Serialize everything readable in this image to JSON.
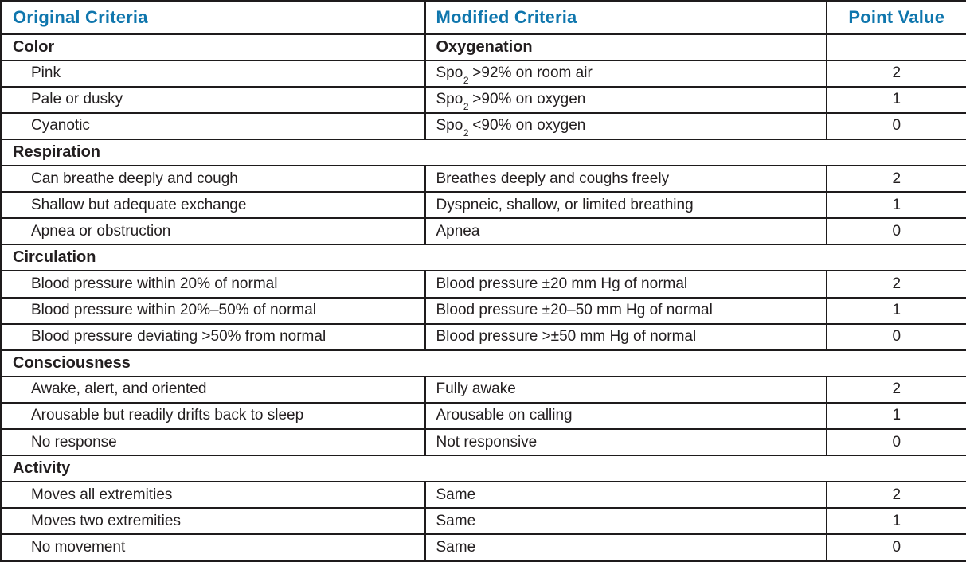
{
  "colors": {
    "accent": "#0f76ad",
    "ink": "#221e1f",
    "border": "#1e1b1c"
  },
  "header": {
    "original": "Original Criteria",
    "modified": "Modified Criteria",
    "points": "Point Value"
  },
  "sections": [
    {
      "original_label": "Color",
      "modified_label": "Oxygenation",
      "rows": [
        {
          "original": "Pink",
          "modified_pre": "Spo",
          "modified_sub": "2",
          "modified_post": " >92% on room air",
          "points": "2"
        },
        {
          "original": "Pale or dusky",
          "modified_pre": "Spo",
          "modified_sub": "2",
          "modified_post": " >90% on oxygen",
          "points": "1"
        },
        {
          "original": "Cyanotic",
          "modified_pre": "Spo",
          "modified_sub": "2",
          "modified_post": " <90% on oxygen",
          "points": "0"
        }
      ]
    },
    {
      "label": "Respiration",
      "rows": [
        {
          "original": "Can breathe deeply and cough",
          "modified_pre": "Breathes deeply and coughs freely",
          "points": "2"
        },
        {
          "original": "Shallow but adequate exchange",
          "modified_pre": "Dyspneic, shallow, or limited breathing",
          "points": "1"
        },
        {
          "original": "Apnea or obstruction",
          "modified_pre": "Apnea",
          "points": "0"
        }
      ]
    },
    {
      "label": "Circulation",
      "rows": [
        {
          "original": "Blood pressure within 20% of normal",
          "modified_pre": "Blood pressure ±20 mm Hg of normal",
          "points": "2"
        },
        {
          "original": "Blood pressure within 20%–50% of normal",
          "modified_pre": "Blood pressure ±20–50 mm Hg of normal",
          "points": "1"
        },
        {
          "original": "Blood pressure deviating >50% from normal",
          "modified_pre": "Blood pressure >±50 mm Hg of normal",
          "points": "0"
        }
      ]
    },
    {
      "label": "Consciousness",
      "rows": [
        {
          "original": "Awake, alert, and oriented",
          "modified_pre": "Fully awake",
          "points": "2"
        },
        {
          "original": "Arousable but readily drifts back to sleep",
          "modified_pre": "Arousable on calling",
          "points": "1"
        },
        {
          "original": "No response",
          "modified_pre": "Not responsive",
          "points": "0"
        }
      ]
    },
    {
      "label": "Activity",
      "rows": [
        {
          "original": "Moves all extremities",
          "modified_pre": "Same",
          "points": "2"
        },
        {
          "original": "Moves two extremities",
          "modified_pre": "Same",
          "points": "1"
        },
        {
          "original": "No movement",
          "modified_pre": "Same",
          "points": "0"
        }
      ]
    }
  ]
}
